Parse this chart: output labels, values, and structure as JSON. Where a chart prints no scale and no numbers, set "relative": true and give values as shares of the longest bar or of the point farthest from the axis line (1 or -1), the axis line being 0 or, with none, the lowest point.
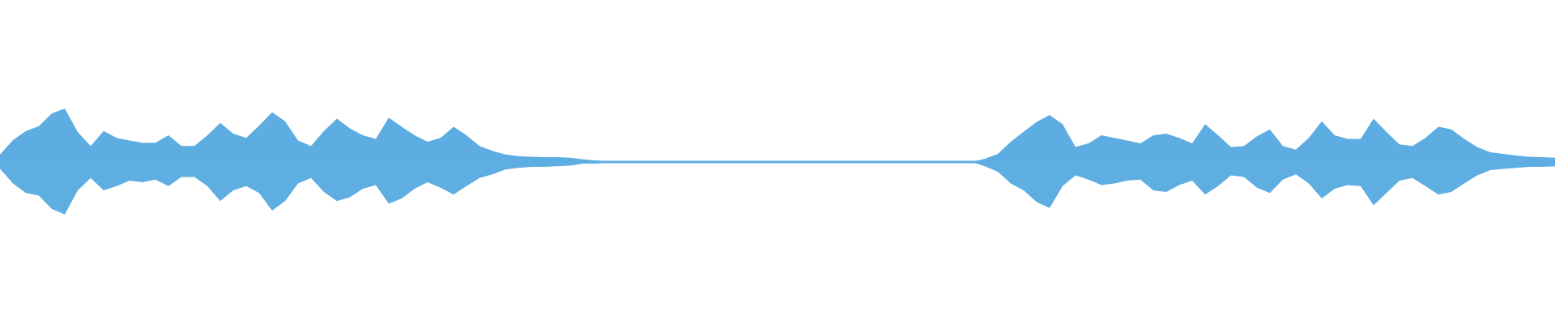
{
  "chart_data": {
    "type": "area",
    "relative": true,
    "tick_labels": false,
    "categories": [
      null,
      null,
      null,
      null,
      null,
      null,
      null,
      null,
      null,
      null,
      null,
      null,
      null,
      null,
      null,
      null,
      null,
      null,
      null,
      null,
      null,
      null,
      null,
      null,
      null,
      null,
      null,
      null,
      null,
      null,
      null,
      null,
      null,
      null,
      null,
      null,
      null,
      null,
      null,
      null,
      null,
      null,
      null,
      null,
      null,
      null,
      null,
      null,
      null,
      null,
      null,
      null,
      null,
      null,
      null,
      null,
      null,
      null,
      null,
      null,
      null,
      null,
      null,
      null,
      null,
      null,
      null,
      null,
      null,
      null,
      null,
      null,
      null,
      null,
      null,
      null,
      null,
      null,
      null,
      null,
      null,
      null,
      null,
      null,
      null,
      null,
      null,
      null,
      null,
      null,
      null,
      null,
      null,
      null,
      null,
      null,
      null,
      null,
      null,
      null,
      null,
      null,
      null,
      null,
      null,
      null,
      null,
      null,
      null,
      null,
      null,
      null,
      null,
      null,
      null,
      null,
      null,
      null,
      null,
      null,
      null
    ],
    "series": [
      {
        "color": "#5dade2",
        "values": [
          0.14,
          0.41,
          0.58,
          0.67,
          0.91,
          1.0,
          0.56,
          0.3,
          0.58,
          0.45,
          0.4,
          0.36,
          0.36,
          0.5,
          0.3,
          0.3,
          0.5,
          0.73,
          0.53,
          0.45,
          0.68,
          0.93,
          0.76,
          0.4,
          0.3,
          0.58,
          0.81,
          0.63,
          0.5,
          0.43,
          0.83,
          0.66,
          0.5,
          0.38,
          0.45,
          0.66,
          0.5,
          0.3,
          0.21,
          0.14,
          0.11,
          0.1,
          0.09,
          0.09,
          0.08,
          0.05,
          0.03,
          0,
          0,
          0,
          0,
          0,
          0,
          0,
          0,
          0,
          0,
          0,
          0,
          0,
          0,
          0,
          0,
          0,
          0,
          0,
          0,
          0,
          0,
          0,
          0,
          0,
          0,
          0,
          0,
          0,
          0.06,
          0.15,
          0.38,
          0.57,
          0.75,
          0.88,
          0.71,
          0.28,
          0.35,
          0.5,
          0.45,
          0.4,
          0.35,
          0.5,
          0.53,
          0.45,
          0.35,
          0.71,
          0.5,
          0.28,
          0.3,
          0.48,
          0.61,
          0.3,
          0.23,
          0.45,
          0.76,
          0.5,
          0.43,
          0.43,
          0.81,
          0.56,
          0.33,
          0.3,
          0.45,
          0.66,
          0.61,
          0.43,
          0.28,
          0.18,
          0.15,
          0.12,
          0.1,
          0.09,
          0.08
        ]
      },
      {
        "color": "#5eaee2",
        "values": [
          -0.13,
          -0.4,
          -0.58,
          -0.63,
          -0.88,
          -0.98,
          -0.53,
          -0.3,
          -0.53,
          -0.45,
          -0.35,
          -0.38,
          -0.33,
          -0.45,
          -0.28,
          -0.28,
          -0.45,
          -0.73,
          -0.53,
          -0.45,
          -0.58,
          -0.91,
          -0.73,
          -0.4,
          -0.3,
          -0.56,
          -0.73,
          -0.66,
          -0.5,
          -0.43,
          -0.78,
          -0.68,
          -0.5,
          -0.38,
          -0.48,
          -0.61,
          -0.45,
          -0.3,
          -0.23,
          -0.14,
          -0.11,
          -0.09,
          -0.09,
          -0.08,
          -0.07,
          -0.03,
          -0.03,
          0,
          0,
          0,
          0,
          0,
          0,
          0,
          0,
          0,
          0,
          0,
          0,
          0,
          0,
          0,
          0,
          0,
          0,
          0,
          0,
          0,
          0,
          0,
          0,
          0,
          0,
          0,
          0,
          0,
          -0.08,
          -0.18,
          -0.4,
          -0.53,
          -0.75,
          -0.86,
          -0.45,
          -0.25,
          -0.33,
          -0.43,
          -0.4,
          -0.35,
          -0.33,
          -0.53,
          -0.56,
          -0.43,
          -0.35,
          -0.61,
          -0.45,
          -0.25,
          -0.28,
          -0.48,
          -0.58,
          -0.33,
          -0.23,
          -0.4,
          -0.68,
          -0.5,
          -0.43,
          -0.45,
          -0.81,
          -0.58,
          -0.35,
          -0.3,
          -0.45,
          -0.61,
          -0.56,
          -0.4,
          -0.25,
          -0.15,
          -0.13,
          -0.11,
          -0.09,
          -0.09,
          -0.08
        ]
      }
    ]
  }
}
